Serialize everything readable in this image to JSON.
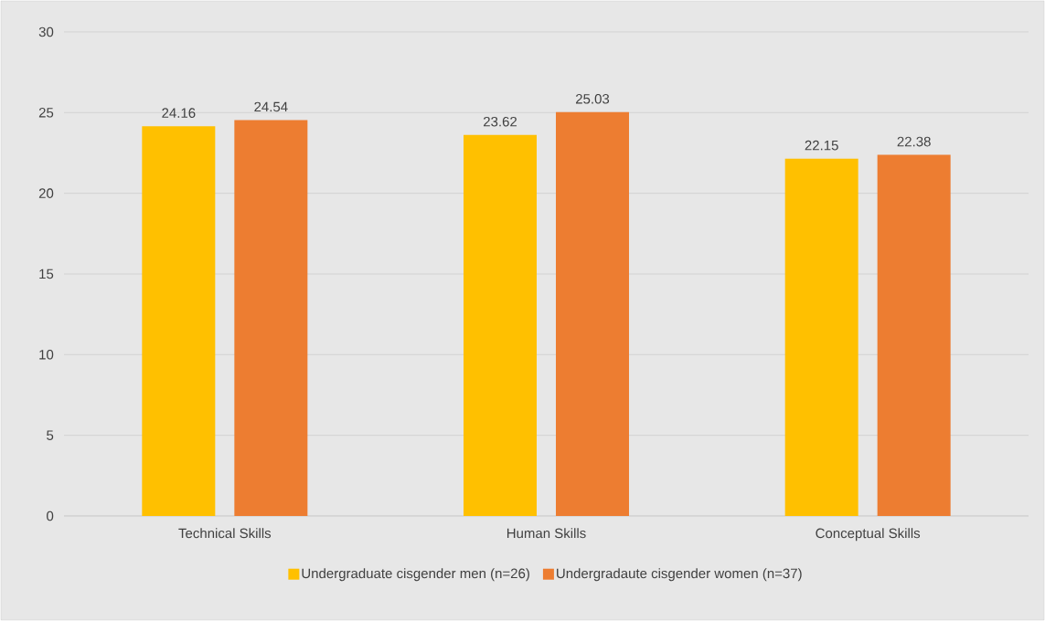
{
  "chart_data": {
    "type": "bar",
    "categories": [
      "Technical Skills",
      "Human Skills",
      "Conceptual Skills"
    ],
    "series": [
      {
        "name": "Undergraduate cisgender men (n=26)",
        "color": "#ffc000",
        "values": [
          24.16,
          23.62,
          22.15
        ]
      },
      {
        "name": "Undergradaute cisgender women (n=37)",
        "color": "#ed7d31",
        "values": [
          24.54,
          25.03,
          22.38
        ]
      }
    ],
    "ylim": [
      0,
      30
    ],
    "yticks": [
      0,
      5,
      10,
      15,
      20,
      25,
      30
    ],
    "grid": "y",
    "legend": "bottom",
    "data_labels": true
  }
}
